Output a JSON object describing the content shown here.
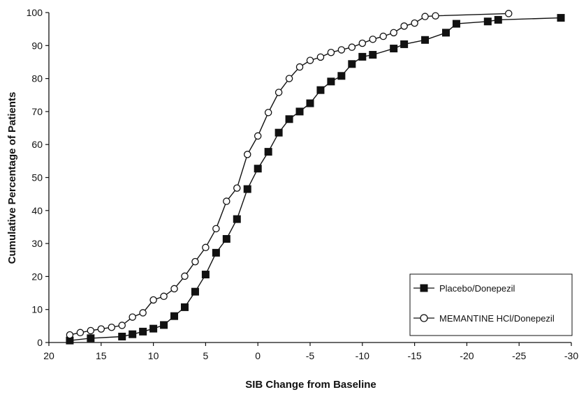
{
  "chart_data": {
    "type": "line",
    "title": "",
    "xlabel": "SIB Change from Baseline",
    "ylabel": "Cumulative Percentage of Patients",
    "xlim": [
      20,
      -30
    ],
    "ylim": [
      0,
      100
    ],
    "x_reversed": true,
    "xticks": [
      20,
      15,
      10,
      5,
      0,
      -5,
      -10,
      -15,
      -20,
      -25,
      -30
    ],
    "yticks": [
      0,
      10,
      20,
      30,
      40,
      50,
      60,
      70,
      80,
      90,
      100
    ],
    "grid": false,
    "legend_position": "bottom-right",
    "series": [
      {
        "name": "Placebo/Donepezil",
        "marker": "filled-square",
        "color": "#111111",
        "x": [
          18,
          16,
          13,
          12,
          11,
          10,
          9,
          8,
          7,
          6,
          5,
          4,
          3,
          2,
          1,
          0,
          -1,
          -2,
          -3,
          -4,
          -5,
          -6,
          -7,
          -8,
          -9,
          -10,
          -11,
          -13,
          -14,
          -16,
          -18,
          -19,
          -22,
          -23,
          -29
        ],
        "y": [
          0.6,
          1.3,
          1.8,
          2.5,
          3.3,
          4.2,
          5.3,
          8.0,
          10.7,
          15.4,
          20.6,
          27.2,
          31.4,
          37.4,
          46.5,
          52.7,
          57.8,
          63.6,
          67.7,
          70.0,
          72.5,
          76.5,
          79.1,
          80.8,
          84.4,
          86.6,
          87.2,
          89.1,
          90.4,
          91.7,
          93.9,
          96.6,
          97.3,
          97.8,
          98.4
        ]
      },
      {
        "name": "MEMANTINE HCl/Donepezil",
        "marker": "open-circle",
        "color": "#111111",
        "x": [
          18,
          17,
          16,
          15,
          14,
          13,
          12,
          11,
          10,
          9,
          8,
          7,
          6,
          5,
          4,
          3,
          2,
          1,
          0,
          -1,
          -2,
          -3,
          -4,
          -5,
          -6,
          -7,
          -8,
          -9,
          -10,
          -11,
          -12,
          -13,
          -14,
          -15,
          -16,
          -17,
          -24
        ],
        "y": [
          2.3,
          3.0,
          3.6,
          4.1,
          4.6,
          5.2,
          7.7,
          9.0,
          12.9,
          14.0,
          16.3,
          20.1,
          24.5,
          28.8,
          34.5,
          42.8,
          46.8,
          57.0,
          62.6,
          69.7,
          75.8,
          80.0,
          83.5,
          85.5,
          86.5,
          87.9,
          88.7,
          89.5,
          90.7,
          91.9,
          92.8,
          93.9,
          95.9,
          96.8,
          98.8,
          99.0,
          99.7
        ]
      }
    ]
  }
}
